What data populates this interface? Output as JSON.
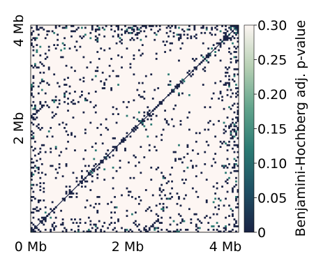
{
  "chart_data": {
    "type": "heatmap",
    "title": "",
    "x_axis": {
      "label": "",
      "range_mb": [
        0,
        4.3
      ],
      "ticks": [
        {
          "value": 0,
          "label": "0 Mb"
        },
        {
          "value": 2,
          "label": "2 Mb"
        },
        {
          "value": 4,
          "label": "4 Mb"
        }
      ]
    },
    "y_axis": {
      "label": "",
      "range_mb": [
        0,
        4.3
      ],
      "ticks": [
        {
          "value": 2,
          "label": "2 Mb"
        },
        {
          "value": 4,
          "label": "4 Mb"
        }
      ]
    },
    "colorbar": {
      "label": "Benjamini-Hochberg adj. p-value",
      "range": [
        0,
        0.3
      ],
      "ticks": [
        {
          "value": 0,
          "label": "0"
        },
        {
          "value": 0.05,
          "label": "0.05"
        },
        {
          "value": 0.1,
          "label": "0.10"
        },
        {
          "value": 0.15,
          "label": "0.15"
        },
        {
          "value": 0.2,
          "label": "0.20"
        },
        {
          "value": 0.25,
          "label": "0.25"
        },
        {
          "value": 0.3,
          "label": "0.30"
        }
      ],
      "colors": [
        "#1a2345",
        "#1f4f63",
        "#2b7a73",
        "#62a48c",
        "#b7d0b4",
        "#fdf6f3"
      ]
    },
    "background_value": 0.3,
    "matrix_symmetric": true,
    "diagonal_line": true
  }
}
